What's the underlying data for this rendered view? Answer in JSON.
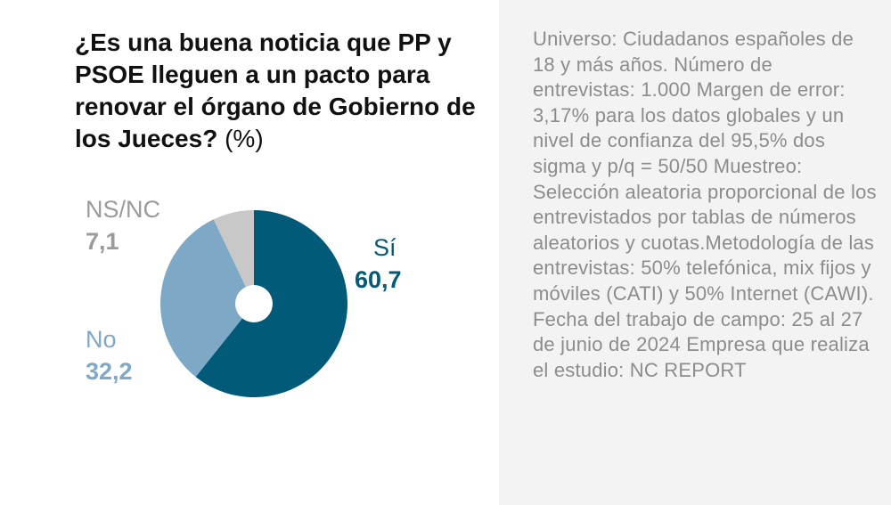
{
  "title": {
    "question": "¿Es una buena noticia que PP y PSOE lleguen a un pacto para renovar el órgano de Gobierno de los Jueces?",
    "unit": "(%)"
  },
  "chart_data": {
    "type": "pie",
    "title": "¿Es una buena noticia que PP y PSOE lleguen a un pacto para renovar el órgano de Gobierno de los Jueces? (%)",
    "categories": [
      "Sí",
      "No",
      "NS/NC"
    ],
    "values": [
      60.7,
      32.2,
      7.1
    ],
    "value_labels": [
      "60,7",
      "32,2",
      "7,1"
    ],
    "colors": [
      "#005a78",
      "#7da9c6",
      "#c8c8c8"
    ],
    "donut": true
  },
  "methodology": "Universo: Ciudadanos españoles de 18 y más años. Número de entrevistas: 1.000 Margen de error: 3,17% para los datos globales y un nivel de confianza del 95,5% dos sigma y p/q = 50/50 Muestreo: Selección aleatoria proporcional de los entrevistados por tablas de números aleatorios y cuotas.Metodología de las entrevistas: 50% telefónica, mix fijos y móviles (CATI) y 50% Internet (CAWI). Fecha del trabajo de campo: 25 al 27 de junio de 2024 Empresa que realiza el estudio: NC REPORT"
}
